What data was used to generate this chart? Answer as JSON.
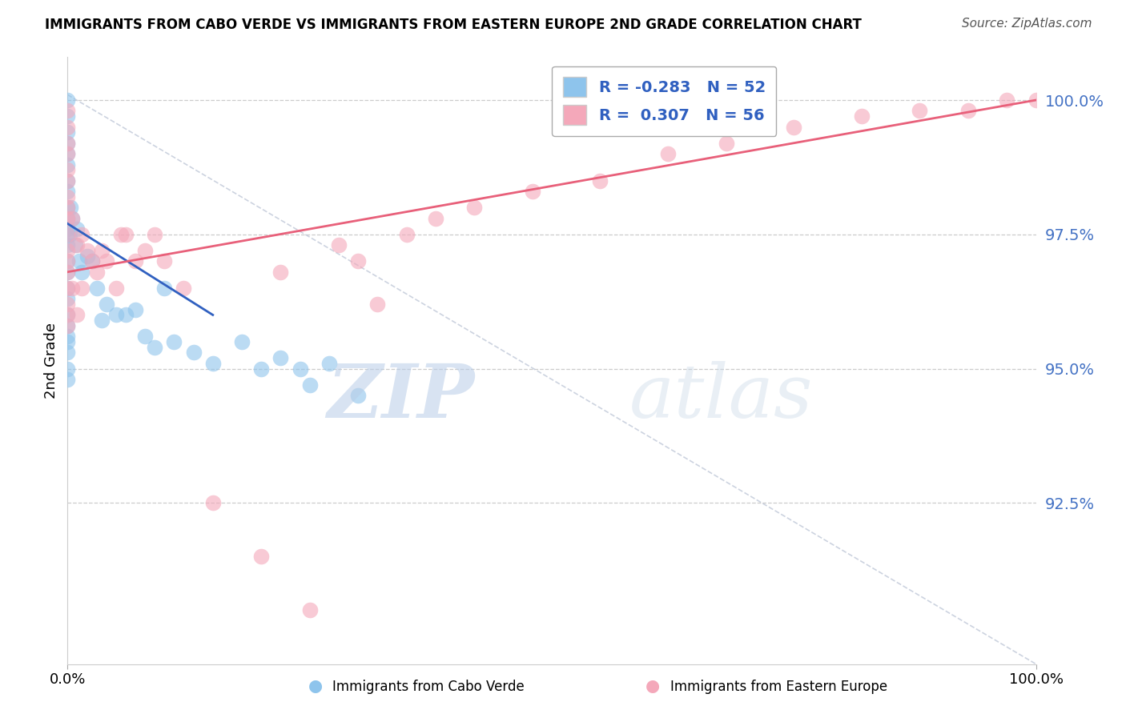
{
  "title": "IMMIGRANTS FROM CABO VERDE VS IMMIGRANTS FROM EASTERN EUROPE 2ND GRADE CORRELATION CHART",
  "source": "Source: ZipAtlas.com",
  "ylabel": "2nd Grade",
  "ytick_labels": [
    "92.5%",
    "95.0%",
    "97.5%",
    "100.0%"
  ],
  "ytick_values": [
    92.5,
    95.0,
    97.5,
    100.0
  ],
  "legend_blue_r": "-0.283",
  "legend_blue_n": "52",
  "legend_pink_r": "0.307",
  "legend_pink_n": "56",
  "legend_label_blue": "Immigrants from Cabo Verde",
  "legend_label_pink": "Immigrants from Eastern Europe",
  "blue_color": "#8EC4EC",
  "pink_color": "#F4A8BA",
  "blue_line_color": "#3060C0",
  "pink_line_color": "#E8607A",
  "watermark_zip": "ZIP",
  "watermark_atlas": "atlas",
  "blue_scatter_x": [
    0.0,
    0.0,
    0.0,
    0.0,
    0.0,
    0.0,
    0.0,
    0.0,
    0.0,
    0.0,
    0.0,
    0.0,
    0.0,
    0.0,
    0.0,
    0.0,
    0.0,
    0.0,
    0.0,
    0.0,
    0.0,
    0.0,
    0.0,
    0.0,
    0.2,
    0.3,
    0.5,
    0.8,
    1.0,
    1.2,
    1.5,
    2.0,
    2.5,
    3.0,
    3.5,
    4.0,
    5.0,
    6.0,
    7.0,
    8.0,
    9.0,
    10.0,
    11.0,
    13.0,
    15.0,
    18.0,
    20.0,
    22.0,
    24.0,
    25.0,
    27.0,
    30.0
  ],
  "blue_scatter_y": [
    100.0,
    99.7,
    99.4,
    99.2,
    99.0,
    98.8,
    98.5,
    98.3,
    98.0,
    97.8,
    97.6,
    97.5,
    97.3,
    97.0,
    96.8,
    96.5,
    96.3,
    96.0,
    95.8,
    95.6,
    95.5,
    95.3,
    95.0,
    94.8,
    97.5,
    98.0,
    97.8,
    97.3,
    97.6,
    97.0,
    96.8,
    97.1,
    97.0,
    96.5,
    95.9,
    96.2,
    96.0,
    96.0,
    96.1,
    95.6,
    95.4,
    96.5,
    95.5,
    95.3,
    95.1,
    95.5,
    95.0,
    95.2,
    95.0,
    94.7,
    95.1,
    94.5
  ],
  "pink_scatter_x": [
    0.0,
    0.0,
    0.0,
    0.0,
    0.0,
    0.0,
    0.0,
    0.0,
    0.0,
    0.0,
    0.0,
    0.0,
    0.0,
    0.0,
    0.0,
    0.0,
    0.0,
    0.5,
    0.5,
    1.0,
    1.0,
    1.5,
    1.5,
    2.0,
    2.5,
    3.0,
    3.5,
    4.0,
    5.0,
    5.5,
    6.0,
    7.0,
    8.0,
    9.0,
    10.0,
    12.0,
    15.0,
    20.0,
    25.0,
    30.0,
    35.0,
    38.0,
    42.0,
    48.0,
    55.0,
    62.0,
    68.0,
    75.0,
    82.0,
    88.0,
    93.0,
    97.0,
    100.0,
    22.0,
    28.0,
    32.0
  ],
  "pink_scatter_y": [
    99.8,
    99.5,
    99.2,
    99.0,
    98.7,
    98.5,
    98.2,
    98.0,
    97.8,
    97.5,
    97.2,
    97.0,
    96.8,
    96.5,
    96.2,
    96.0,
    95.8,
    97.8,
    96.5,
    97.3,
    96.0,
    97.5,
    96.5,
    97.2,
    97.0,
    96.8,
    97.2,
    97.0,
    96.5,
    97.5,
    97.5,
    97.0,
    97.2,
    97.5,
    97.0,
    96.5,
    92.5,
    91.5,
    90.5,
    97.0,
    97.5,
    97.8,
    98.0,
    98.3,
    98.5,
    99.0,
    99.2,
    99.5,
    99.7,
    99.8,
    99.8,
    100.0,
    100.0,
    96.8,
    97.3,
    96.2
  ],
  "blue_line_x0": 0.0,
  "blue_line_x1": 15.0,
  "blue_line_y0": 97.7,
  "blue_line_y1": 96.0,
  "pink_line_x0": 0.0,
  "pink_line_x1": 100.0,
  "pink_line_y0": 96.8,
  "pink_line_y1": 100.0,
  "diag_line_x0": 0.0,
  "diag_line_x1": 100.0,
  "diag_line_y0": 100.1,
  "diag_line_y1": 89.5,
  "xmin": 0.0,
  "xmax": 100.0,
  "ymin": 89.5,
  "ymax": 100.8
}
